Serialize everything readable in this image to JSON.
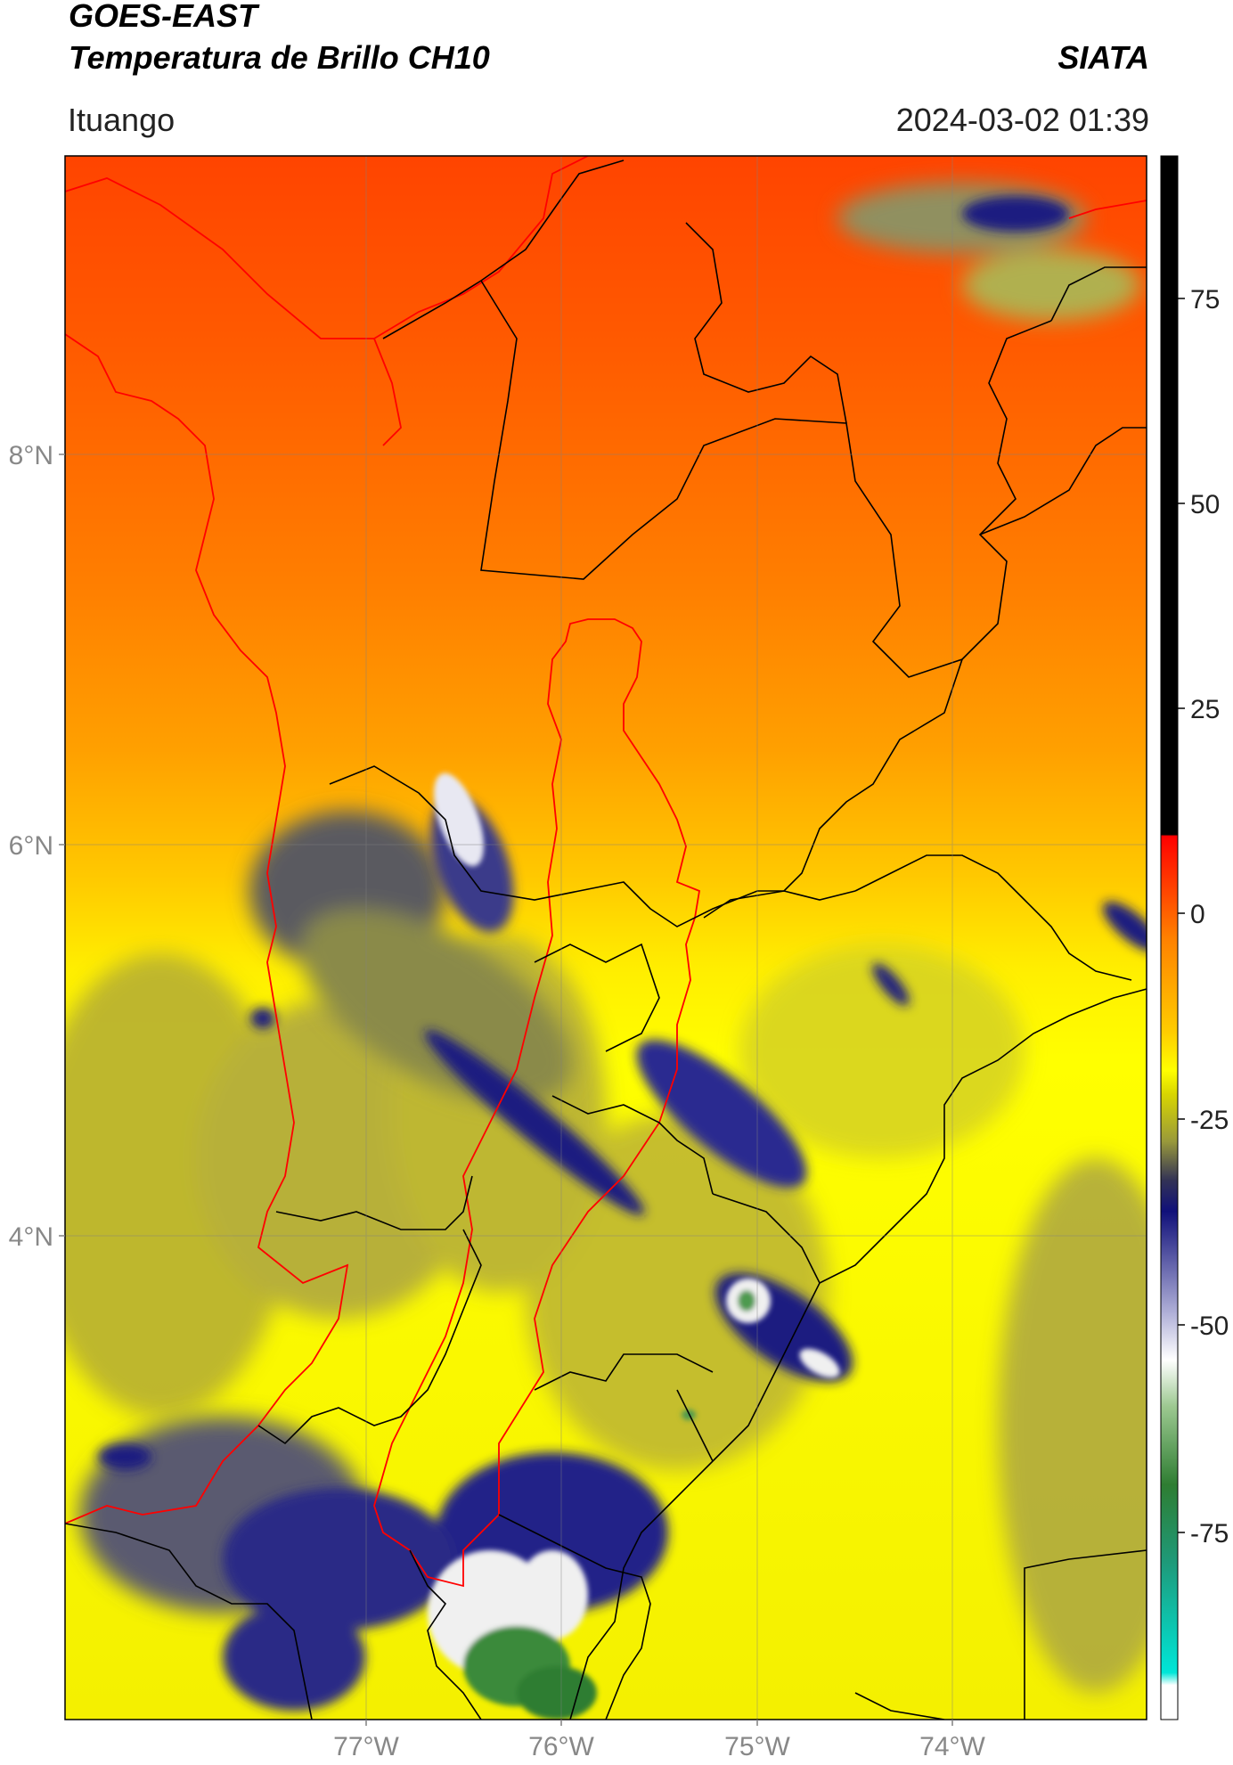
{
  "header": {
    "title": "GOES-EAST",
    "subtitle": "Temperatura de Brillo CH10",
    "org": "SIATA",
    "location": "Ituango",
    "timestamp": "2024-03-02 01:39"
  },
  "map": {
    "lat_labels": [
      "8°N",
      "6°N",
      "4°N"
    ],
    "lon_labels": [
      "77°W",
      "76°W",
      "75°W",
      "74°W"
    ],
    "colorbar_ticks": [
      "75",
      "50",
      "25",
      "0",
      "-25",
      "-50",
      "-75"
    ]
  },
  "colors": {
    "orange_red": "#ff4a00",
    "orange": "#ff9a00",
    "yellow": "#ffff00",
    "olive": "#9a9a35",
    "navy": "#1a1a80",
    "white": "#f4f4f4",
    "green": "#2e7d32",
    "border_red": "#ff0000",
    "border_black": "#000000"
  }
}
